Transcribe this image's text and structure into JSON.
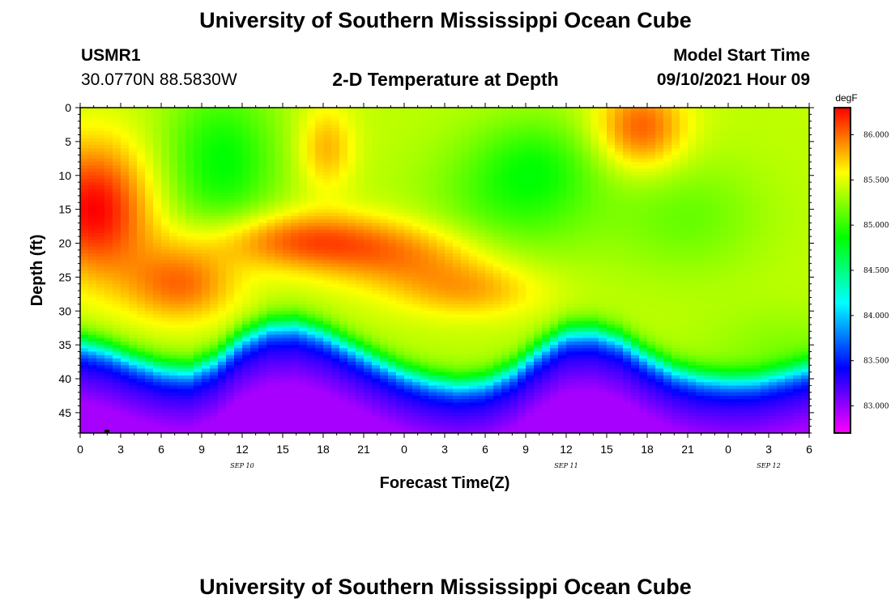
{
  "page": {
    "title_top": "University of Southern Mississippi Ocean Cube",
    "title_bottom": "University of Southern Mississippi Ocean Cube",
    "station_id": "USMR1",
    "station_coords": "30.0770N  88.5830W",
    "plot_title": "2-D Temperature at Depth",
    "model_start_label": "Model Start Time",
    "model_start_value": "09/10/2021 Hour 09"
  },
  "chart_data": {
    "type": "heatmap",
    "title": "2-D Temperature at Depth",
    "xlabel": "Forecast Time(Z)",
    "ylabel": "Depth (ft)",
    "unit": "degF",
    "x_range_hours": [
      0,
      54
    ],
    "x_ticks": [
      {
        "hour": 0,
        "label": "0"
      },
      {
        "hour": 3,
        "label": "3"
      },
      {
        "hour": 6,
        "label": "6"
      },
      {
        "hour": 9,
        "label": "9"
      },
      {
        "hour": 12,
        "label": "12"
      },
      {
        "hour": 15,
        "label": "15"
      },
      {
        "hour": 18,
        "label": "18"
      },
      {
        "hour": 21,
        "label": "21"
      },
      {
        "hour": 24,
        "label": "0"
      },
      {
        "hour": 27,
        "label": "3"
      },
      {
        "hour": 30,
        "label": "6"
      },
      {
        "hour": 33,
        "label": "9"
      },
      {
        "hour": 36,
        "label": "12"
      },
      {
        "hour": 39,
        "label": "15"
      },
      {
        "hour": 42,
        "label": "18"
      },
      {
        "hour": 45,
        "label": "21"
      },
      {
        "hour": 48,
        "label": "0"
      },
      {
        "hour": 51,
        "label": "3"
      },
      {
        "hour": 54,
        "label": "6"
      }
    ],
    "date_labels": [
      {
        "hour": 12,
        "label": "SEP 10"
      },
      {
        "hour": 36,
        "label": "SEP 11"
      },
      {
        "hour": 51,
        "label": "SEP 12"
      }
    ],
    "y_range_ft": [
      0,
      48
    ],
    "y_ticks": [
      0,
      5,
      10,
      15,
      20,
      25,
      30,
      35,
      40,
      45
    ],
    "colorbar": {
      "range": [
        82.7,
        86.3
      ],
      "tick_values": [
        86.0,
        85.5,
        85.0,
        84.5,
        84.0,
        83.5,
        83.0
      ],
      "tick_labels": [
        "86.000",
        "85.500",
        "85.000",
        "84.500",
        "84.000",
        "83.500",
        "83.000"
      ]
    },
    "thermocline": {
      "description": "depth (ft) of the sharp warm-to-cold transition over forecast hours",
      "hours": [
        0,
        2,
        4,
        6,
        8,
        10,
        12,
        14,
        16,
        18,
        20,
        22,
        24,
        26,
        28,
        30,
        32,
        34,
        36,
        38,
        40,
        42,
        44,
        46,
        48,
        50,
        52,
        54
      ],
      "depth_ft": [
        34.5,
        35.5,
        37.0,
        38.2,
        38.6,
        37.0,
        33.8,
        32.0,
        31.8,
        33.0,
        35.0,
        37.0,
        38.8,
        40.0,
        40.6,
        40.2,
        38.5,
        35.5,
        33.0,
        32.8,
        34.0,
        36.5,
        38.5,
        39.5,
        39.9,
        39.8,
        39.0,
        38.0
      ]
    },
    "surface_field_samples": [
      {
        "hour": 0,
        "depth_ft": 15,
        "value": 86.2
      },
      {
        "hour": 8,
        "depth_ft": 27,
        "value": 86.0
      },
      {
        "hour": 10,
        "depth_ft": 5,
        "value": 84.9
      },
      {
        "hour": 18,
        "depth_ft": 7,
        "value": 85.8
      },
      {
        "hour": 18,
        "depth_ft": 19,
        "value": 85.9
      },
      {
        "hour": 32,
        "depth_ft": 10,
        "value": 85.1
      },
      {
        "hour": 42,
        "depth_ft": 3,
        "value": 86.0
      },
      {
        "hour": 52,
        "depth_ft": 20,
        "value": 85.3
      },
      {
        "hour": 30,
        "depth_ft": 47,
        "value": 82.9
      }
    ]
  }
}
